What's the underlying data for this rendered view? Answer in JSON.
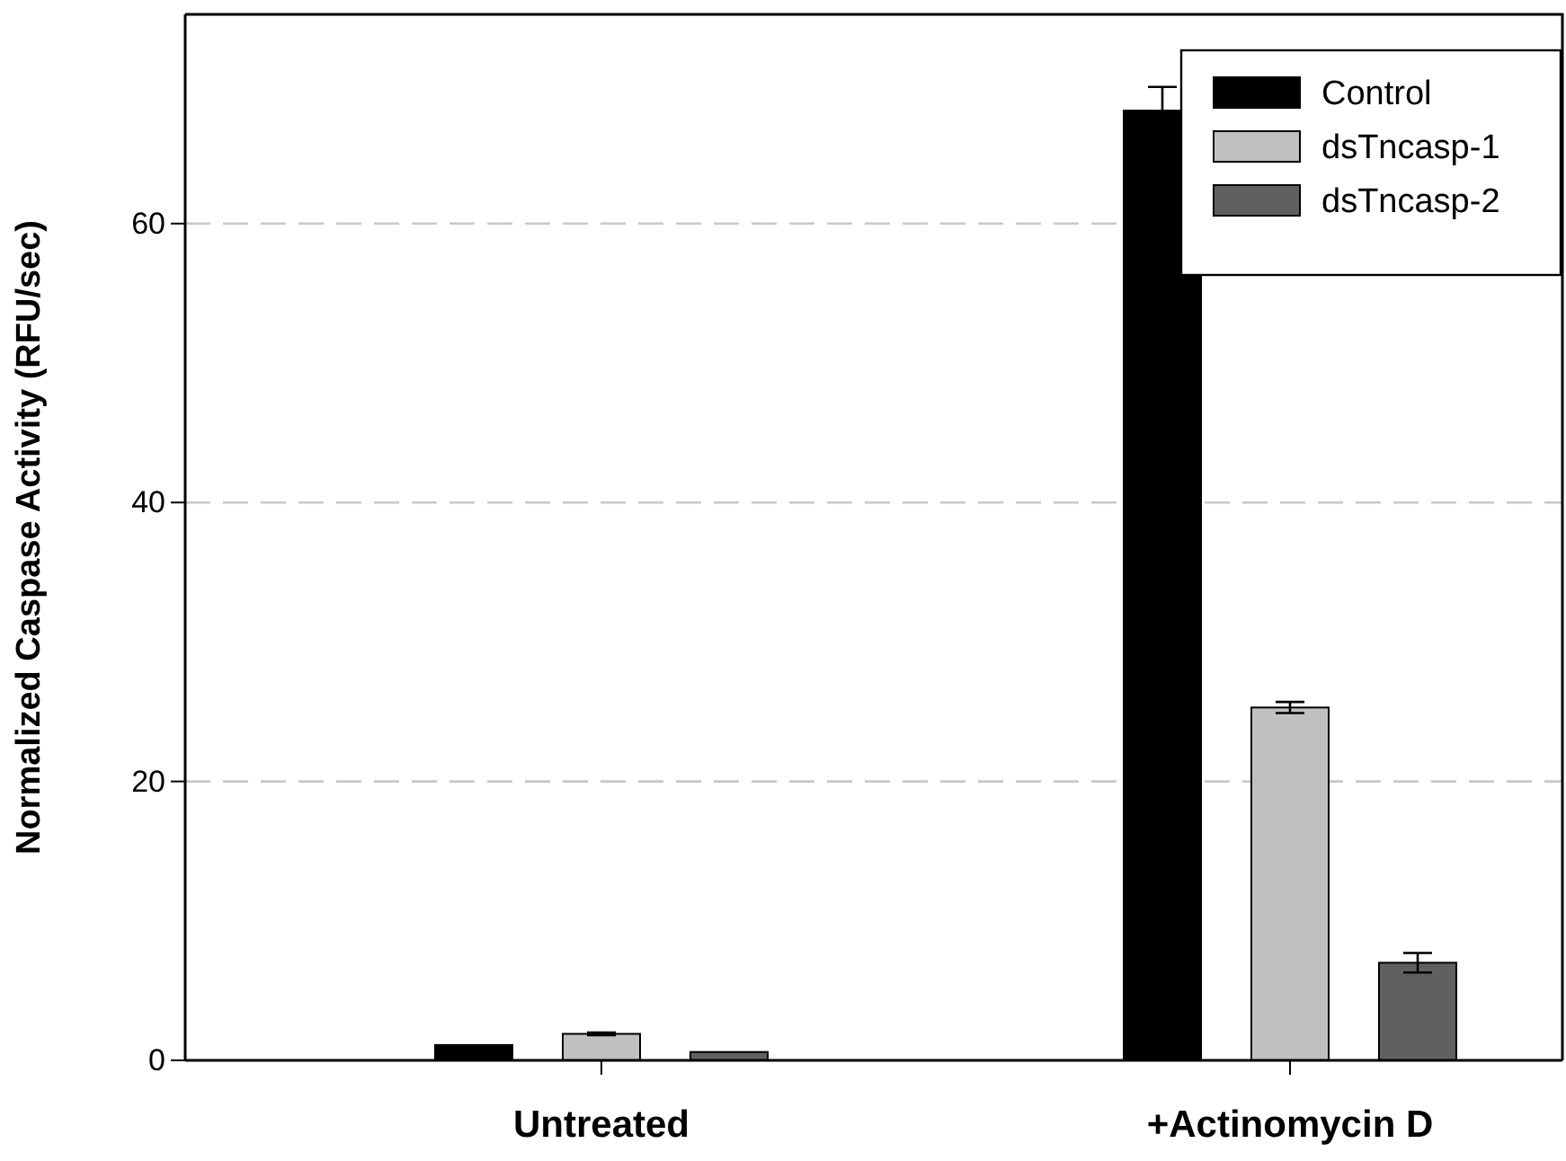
{
  "chart_data": {
    "type": "bar",
    "ylabel": "Normalized Caspase Activity (RFU/sec)",
    "categories": [
      "Untreated",
      "+Actinomycin D"
    ],
    "series": [
      {
        "name": "Control",
        "color": "#000000",
        "values": [
          1.1,
          68.1
        ],
        "errors": [
          null,
          1.7
        ]
      },
      {
        "name": "dsTncasp-1",
        "color": "#c0c0c0",
        "values": [
          1.9,
          25.3
        ],
        "errors": [
          0.1,
          0.4
        ]
      },
      {
        "name": "dsTncasp-2",
        "color": "#606060",
        "values": [
          0.6,
          7.0
        ],
        "errors": [
          null,
          0.7
        ]
      }
    ],
    "ylim": [
      0,
      75
    ],
    "yticks": [
      0,
      20,
      40,
      60
    ],
    "grid": "y",
    "legend": "top right"
  }
}
